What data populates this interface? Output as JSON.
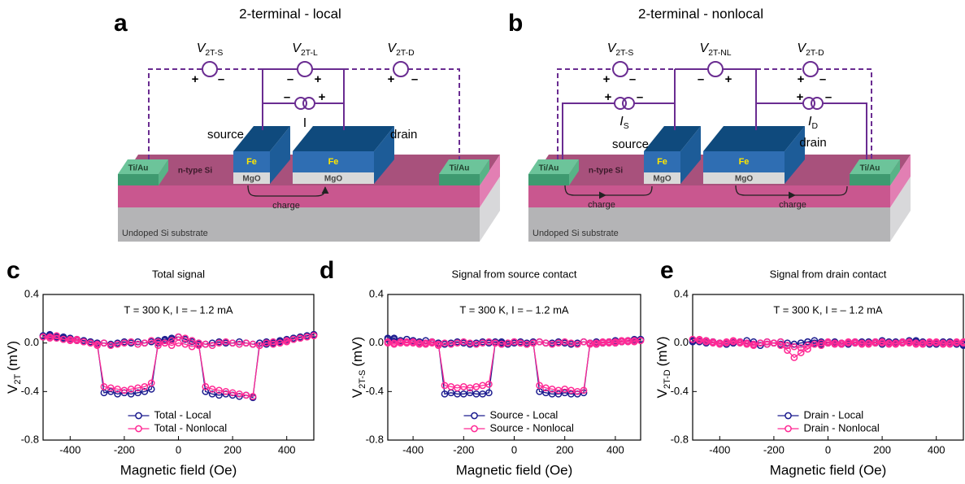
{
  "panel_a": {
    "letter": "a",
    "title": "2-terminal - local",
    "meters": [
      {
        "symbol": "V",
        "sub": "2T-S"
      },
      {
        "symbol": "V",
        "sub": "2T-L"
      },
      {
        "symbol": "V",
        "sub": "2T-D"
      }
    ],
    "current": "I",
    "plus": "+",
    "minus": "–",
    "contact_pad": "Ti/Au",
    "channel": "n-type Si",
    "ferromagnet": "Fe",
    "barrier": "MgO",
    "source": "source",
    "drain": "drain",
    "charge": "charge",
    "substrate": "Undoped Si substrate"
  },
  "panel_b": {
    "letter": "b",
    "title": "2-terminal - nonlocal",
    "meters": [
      {
        "symbol": "V",
        "sub": "2T-S"
      },
      {
        "symbol": "V",
        "sub": "2T-NL"
      },
      {
        "symbol": "V",
        "sub": "2T-D"
      }
    ],
    "currents": [
      {
        "symbol": "I",
        "sub": "S"
      },
      {
        "symbol": "I",
        "sub": "D"
      }
    ],
    "plus": "+",
    "minus": "–",
    "contact_pad": "Ti/Au",
    "channel": "n-type Si",
    "ferromagnet": "Fe",
    "barrier": "MgO",
    "source": "source",
    "drain": "drain",
    "charge": "charge",
    "substrate": "Undoped Si substrate"
  },
  "chart_data": [
    {
      "type": "line",
      "letter": "c",
      "title": "Total signal",
      "annotation": "T = 300 K, I = – 1.2 mA",
      "xlabel": "Magnetic field (Oe)",
      "ylabel": "V",
      "ylabel_sub": "2T",
      "ylabel_unit": "(mV)",
      "xlim": [
        -500,
        500
      ],
      "ylim": [
        -0.8,
        0.4
      ],
      "xticks": [
        -400,
        -200,
        0,
        200,
        400
      ],
      "yticks": [
        -0.8,
        -0.4,
        {
          "value": 0,
          "label": "0.0"
        },
        0.4
      ],
      "legend": "lower center",
      "x": [
        -500,
        -475,
        -450,
        -425,
        -400,
        -375,
        -350,
        -325,
        -300,
        -275,
        -250,
        -225,
        -200,
        -175,
        -150,
        -125,
        -100,
        -75,
        -50,
        -25,
        0,
        25,
        50,
        75,
        100,
        125,
        150,
        175,
        200,
        225,
        250,
        275,
        300,
        325,
        350,
        375,
        400,
        425,
        450,
        475,
        500,
        500,
        475,
        450,
        425,
        400,
        375,
        350,
        325,
        300,
        275,
        250,
        225,
        200,
        175,
        150,
        125,
        100,
        75,
        50,
        25,
        0,
        -25,
        -50,
        -75,
        -100,
        -125,
        -150,
        -175,
        -200,
        -225,
        -250,
        -275,
        -300,
        -325,
        -350,
        -375,
        -400,
        -425,
        -450,
        -475,
        -500
      ],
      "series": [
        {
          "name": "Total - Local",
          "color": "#1c1c8f",
          "values": [
            0.06,
            0.07,
            0.05,
            0.04,
            0.03,
            0.02,
            0.02,
            0.01,
            0.0,
            0.0,
            -0.01,
            0.0,
            0.01,
            0.0,
            0.01,
            0.0,
            0.01,
            0.02,
            0.03,
            0.04,
            0.05,
            0.03,
            0.01,
            -0.01,
            -0.4,
            -0.42,
            -0.43,
            -0.42,
            -0.43,
            -0.44,
            -0.43,
            -0.45,
            0.0,
            0.01,
            0.0,
            0.02,
            0.03,
            0.04,
            0.05,
            0.06,
            0.07,
            0.07,
            0.06,
            0.05,
            0.04,
            0.02,
            0.01,
            0.0,
            -0.01,
            0.0,
            -0.01,
            0.0,
            0.01,
            0.0,
            0.0,
            0.01,
            0.0,
            -0.01,
            0.0,
            0.02,
            0.03,
            0.05,
            0.03,
            0.02,
            0.0,
            -0.38,
            -0.4,
            -0.41,
            -0.42,
            -0.41,
            -0.42,
            -0.4,
            -0.41,
            0.0,
            0.01,
            0.02,
            0.03,
            0.04,
            0.05,
            0.05,
            0.06,
            0.06
          ]
        },
        {
          "name": "Total - Nonlocal",
          "color": "#ff2a95",
          "values": [
            0.05,
            0.04,
            0.06,
            0.03,
            0.02,
            0.03,
            0.01,
            0.0,
            -0.01,
            0.0,
            -0.02,
            -0.01,
            0.0,
            0.01,
            -0.01,
            0.0,
            0.02,
            0.01,
            0.0,
            -0.02,
            0.0,
            -0.01,
            -0.03,
            -0.02,
            -0.36,
            -0.38,
            -0.39,
            -0.4,
            -0.41,
            -0.42,
            -0.43,
            -0.44,
            -0.02,
            0.0,
            0.01,
            0.0,
            0.02,
            0.03,
            0.04,
            0.05,
            0.06,
            0.06,
            0.05,
            0.04,
            0.03,
            0.01,
            0.0,
            -0.01,
            0.0,
            -0.02,
            -0.01,
            0.0,
            -0.01,
            0.0,
            0.01,
            0.0,
            -0.02,
            -0.01,
            0.0,
            0.02,
            0.04,
            0.05,
            0.02,
            0.0,
            -0.02,
            -0.33,
            -0.36,
            -0.37,
            -0.38,
            -0.39,
            -0.38,
            -0.37,
            -0.36,
            -0.02,
            0.0,
            0.01,
            0.02,
            0.03,
            0.03,
            0.04,
            0.05,
            0.05
          ]
        }
      ]
    },
    {
      "type": "line",
      "letter": "d",
      "title": "Signal from source contact",
      "annotation": "T = 300 K, I = – 1.2 mA",
      "xlabel": "Magnetic field (Oe)",
      "ylabel": "V",
      "ylabel_sub": "2T-S",
      "ylabel_unit": "(mV)",
      "xlim": [
        -500,
        500
      ],
      "ylim": [
        -0.8,
        0.4
      ],
      "xticks": [
        -400,
        -200,
        0,
        200,
        400
      ],
      "yticks": [
        -0.8,
        -0.4,
        {
          "value": 0,
          "label": "0.0"
        },
        0.4
      ],
      "legend": "lower center",
      "x": [
        -500,
        -475,
        -450,
        -425,
        -400,
        -375,
        -350,
        -325,
        -300,
        -275,
        -250,
        -225,
        -200,
        -175,
        -150,
        -125,
        -100,
        -75,
        -50,
        -25,
        0,
        25,
        50,
        75,
        100,
        125,
        150,
        175,
        200,
        225,
        250,
        275,
        300,
        325,
        350,
        375,
        400,
        425,
        450,
        475,
        500,
        500,
        475,
        450,
        425,
        400,
        375,
        350,
        325,
        300,
        275,
        250,
        225,
        200,
        175,
        150,
        125,
        100,
        75,
        50,
        25,
        0,
        -25,
        -50,
        -75,
        -100,
        -125,
        -150,
        -175,
        -200,
        -225,
        -250,
        -275,
        -300,
        -325,
        -350,
        -375,
        -400,
        -425,
        -450,
        -475,
        -500
      ],
      "series": [
        {
          "name": "Source - Local",
          "color": "#1c1c8f",
          "values": [
            0.03,
            0.04,
            0.02,
            0.03,
            0.02,
            0.01,
            0.0,
            0.01,
            0.0,
            -0.01,
            0.0,
            0.01,
            0.0,
            -0.01,
            0.0,
            0.01,
            0.0,
            0.01,
            0.0,
            -0.01,
            0.0,
            0.01,
            0.0,
            0.01,
            -0.4,
            -0.41,
            -0.42,
            -0.42,
            -0.41,
            -0.42,
            -0.42,
            -0.41,
            0.0,
            0.01,
            0.0,
            0.01,
            0.02,
            0.01,
            0.02,
            0.03,
            0.03,
            0.03,
            0.02,
            0.02,
            0.01,
            0.0,
            0.01,
            0.0,
            -0.01,
            0.0,
            0.01,
            0.0,
            -0.01,
            0.0,
            0.01,
            0.0,
            0.0,
            0.01,
            0.0,
            -0.01,
            0.0,
            0.01,
            0.0,
            0.01,
            0.0,
            -0.41,
            -0.42,
            -0.42,
            -0.41,
            -0.42,
            -0.42,
            -0.41,
            -0.42,
            0.0,
            0.01,
            0.02,
            0.01,
            0.02,
            0.03,
            0.02,
            0.03,
            0.04
          ]
        },
        {
          "name": "Source - Nonlocal",
          "color": "#ff2a95",
          "values": [
            0.0,
            -0.01,
            0.0,
            0.01,
            0.0,
            -0.01,
            0.0,
            0.01,
            -0.02,
            0.0,
            -0.01,
            0.0,
            0.01,
            0.0,
            -0.01,
            0.0,
            0.01,
            0.0,
            -0.01,
            0.0,
            0.01,
            0.0,
            -0.01,
            0.0,
            -0.35,
            -0.37,
            -0.38,
            -0.39,
            -0.38,
            -0.39,
            -0.4,
            -0.39,
            -0.01,
            0.0,
            0.01,
            0.0,
            0.01,
            0.02,
            0.01,
            0.02,
            0.02,
            0.02,
            0.01,
            0.02,
            0.01,
            0.0,
            0.01,
            0.0,
            -0.01,
            0.0,
            0.01,
            -0.01,
            0.0,
            0.01,
            0.0,
            -0.01,
            0.0,
            0.01,
            0.0,
            -0.01,
            0.0,
            0.01,
            0.0,
            -0.01,
            0.0,
            -0.34,
            -0.35,
            -0.36,
            -0.37,
            -0.36,
            -0.37,
            -0.36,
            -0.35,
            -0.01,
            0.0,
            -0.01,
            0.0,
            0.01,
            0.0,
            0.01,
            0.0,
            0.01
          ]
        }
      ]
    },
    {
      "type": "line",
      "letter": "e",
      "title": "Signal from drain contact",
      "annotation": "T = 300 K, I = – 1.2 mA",
      "xlabel": "Magnetic field (Oe)",
      "ylabel": "V",
      "ylabel_sub": "2T-D",
      "ylabel_unit": "(mV)",
      "xlim": [
        -500,
        500
      ],
      "ylim": [
        -0.8,
        0.4
      ],
      "xticks": [
        -400,
        -200,
        0,
        200,
        400
      ],
      "yticks": [
        -0.8,
        -0.4,
        {
          "value": 0,
          "label": "0.0"
        },
        0.4
      ],
      "legend": "lower center",
      "x": [
        -500,
        -475,
        -450,
        -425,
        -400,
        -375,
        -350,
        -325,
        -300,
        -275,
        -250,
        -225,
        -200,
        -175,
        -150,
        -125,
        -100,
        -75,
        -50,
        -25,
        0,
        25,
        50,
        75,
        100,
        125,
        150,
        175,
        200,
        225,
        250,
        275,
        300,
        325,
        350,
        375,
        400,
        425,
        450,
        475,
        500,
        500,
        475,
        450,
        425,
        400,
        375,
        350,
        325,
        300,
        275,
        250,
        225,
        200,
        175,
        150,
        125,
        100,
        75,
        50,
        25,
        0,
        -25,
        -50,
        -75,
        -100,
        -125,
        -150,
        -175,
        -200,
        -225,
        -250,
        -275,
        -300,
        -325,
        -350,
        -375,
        -400,
        -425,
        -450,
        -475,
        -500
      ],
      "series": [
        {
          "name": "Drain - Local",
          "color": "#1c1c8f",
          "values": [
            0.01,
            0.02,
            0.0,
            0.01,
            0.0,
            -0.01,
            0.0,
            0.01,
            0.0,
            -0.01,
            -0.02,
            -0.01,
            0.0,
            0.01,
            0.0,
            -0.01,
            0.0,
            0.01,
            0.02,
            0.01,
            0.0,
            0.01,
            0.0,
            -0.01,
            0.0,
            0.01,
            0.0,
            0.01,
            0.02,
            0.01,
            0.0,
            0.01,
            0.02,
            0.01,
            0.0,
            -0.01,
            0.0,
            0.01,
            0.0,
            -0.01,
            -0.02,
            -0.01,
            0.0,
            0.01,
            0.0,
            -0.01,
            0.0,
            0.01,
            0.02,
            0.01,
            0.0,
            0.01,
            0.0,
            -0.01,
            0.0,
            0.01,
            0.0,
            0.01,
            0.0,
            -0.01,
            0.0,
            0.0,
            -0.01,
            0.0,
            0.01,
            0.0,
            -0.01,
            -0.02,
            -0.01,
            0.0,
            0.01,
            0.0,
            0.01,
            0.02,
            0.01,
            0.0,
            -0.01,
            0.0,
            0.01,
            0.02,
            0.01,
            0.02
          ]
        },
        {
          "name": "Drain - Nonlocal",
          "color": "#ff2a95",
          "values": [
            0.03,
            0.02,
            0.01,
            0.0,
            -0.01,
            0.0,
            0.01,
            0.0,
            -0.01,
            -0.02,
            0.0,
            -0.01,
            0.0,
            0.01,
            -0.02,
            -0.03,
            -0.04,
            -0.02,
            -0.01,
            0.0,
            0.01,
            0.0,
            -0.01,
            0.0,
            0.01,
            0.0,
            -0.01,
            0.0,
            0.01,
            0.0,
            -0.01,
            0.0,
            0.01,
            0.0,
            -0.01,
            0.0,
            0.01,
            0.0,
            -0.01,
            0.0,
            0.01,
            0.0,
            0.01,
            0.0,
            -0.01,
            0.0,
            0.01,
            0.0,
            -0.01,
            0.0,
            0.01,
            0.0,
            -0.01,
            0.0,
            0.01,
            0.0,
            -0.01,
            0.0,
            0.01,
            0.0,
            -0.01,
            0.0,
            -0.02,
            -0.01,
            -0.05,
            -0.08,
            -0.12,
            -0.06,
            -0.02,
            0.0,
            0.01,
            0.0,
            -0.01,
            0.0,
            0.01,
            0.02,
            0.01,
            0.0,
            0.01,
            0.02,
            0.03,
            0.03
          ]
        }
      ]
    }
  ]
}
